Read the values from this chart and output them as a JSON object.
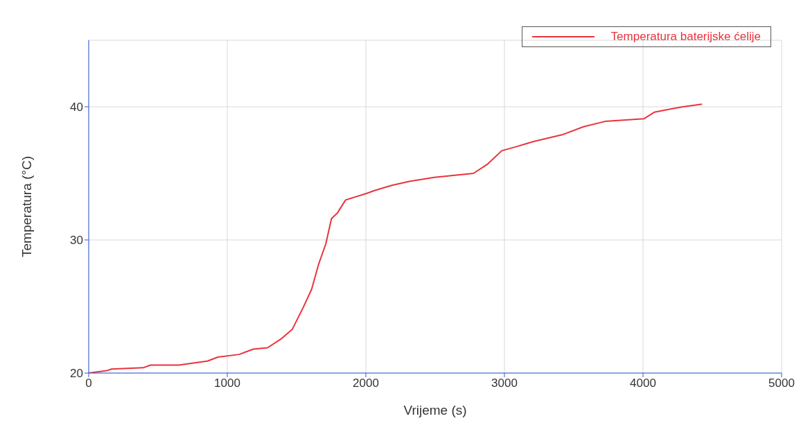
{
  "chart_data": {
    "type": "line",
    "xlabel": "Vrijeme (s)",
    "ylabel": "Temperatura (°C)",
    "x": [
      0,
      138,
      164,
      394,
      446,
      650,
      856,
      932,
      1086,
      1188,
      1291,
      1393,
      1470,
      1547,
      1609,
      1660,
      1711,
      1752,
      1793,
      1854,
      2008,
      2059,
      2188,
      2316,
      2495,
      2777,
      2879,
      2981,
      3084,
      3212,
      3417,
      3571,
      3725,
      4006,
      4083,
      4185,
      4288,
      4426
    ],
    "series": [
      {
        "name": "Temperatura baterijske ćelije",
        "color": "#e8333d",
        "values": [
          20,
          20.2,
          20.3,
          20.4,
          20.6,
          20.6,
          20.9,
          21.2,
          21.4,
          21.8,
          21.9,
          22.6,
          23.3,
          24.9,
          26.3,
          28.2,
          29.7,
          31.6,
          32.0,
          33.0,
          33.5,
          33.7,
          34.1,
          34.4,
          34.7,
          35.0,
          35.7,
          36.7,
          37.0,
          37.4,
          37.9,
          38.5,
          38.9,
          39.1,
          39.6,
          39.8,
          40.0,
          40.2
        ]
      }
    ],
    "xlim": [
      0,
      5000
    ],
    "xticks": [
      0,
      1000,
      2000,
      3000,
      4000,
      5000
    ],
    "ylim": [
      20,
      45
    ],
    "yticks": [
      20,
      30,
      40
    ],
    "grid": true,
    "legend": "top right",
    "marker": "none",
    "line_style": "solid"
  }
}
